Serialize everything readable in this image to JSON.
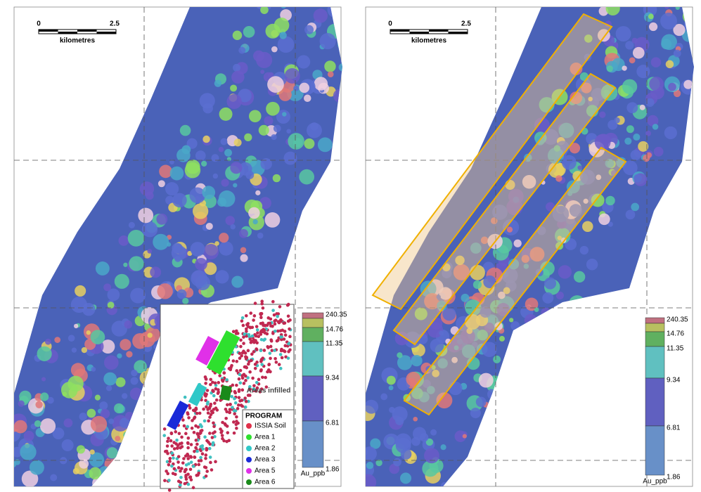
{
  "panels": [
    {
      "scale_bar": {
        "start": "0",
        "end": "2.5",
        "unit": "kilometres"
      },
      "legend": {
        "labels": [
          "240.35",
          "14.76",
          "11.35",
          "9.34",
          "6.81",
          "1.86"
        ],
        "unit": "Au_ppb"
      }
    },
    {
      "scale_bar": {
        "start": "0",
        "end": "2.5",
        "unit": "kilometres"
      },
      "legend": {
        "labels": [
          "240.35",
          "14.76",
          "11.35",
          "9.34",
          "6.81",
          "1.86"
        ],
        "unit": "Au_ppb"
      }
    }
  ],
  "inset": {
    "title": "Areas infilled",
    "legend_title": "PROGRAM",
    "items": [
      {
        "label": "ISSIA Soil",
        "color": "#e0304a"
      },
      {
        "label": "Area 1",
        "color": "#2ee02e"
      },
      {
        "label": "Area 2",
        "color": "#30c8c8"
      },
      {
        "label": "Area 3",
        "color": "#1a2ad8"
      },
      {
        "label": "Area 5",
        "color": "#e030e8"
      },
      {
        "label": "Area 6",
        "color": "#1a8a1a"
      }
    ]
  }
}
